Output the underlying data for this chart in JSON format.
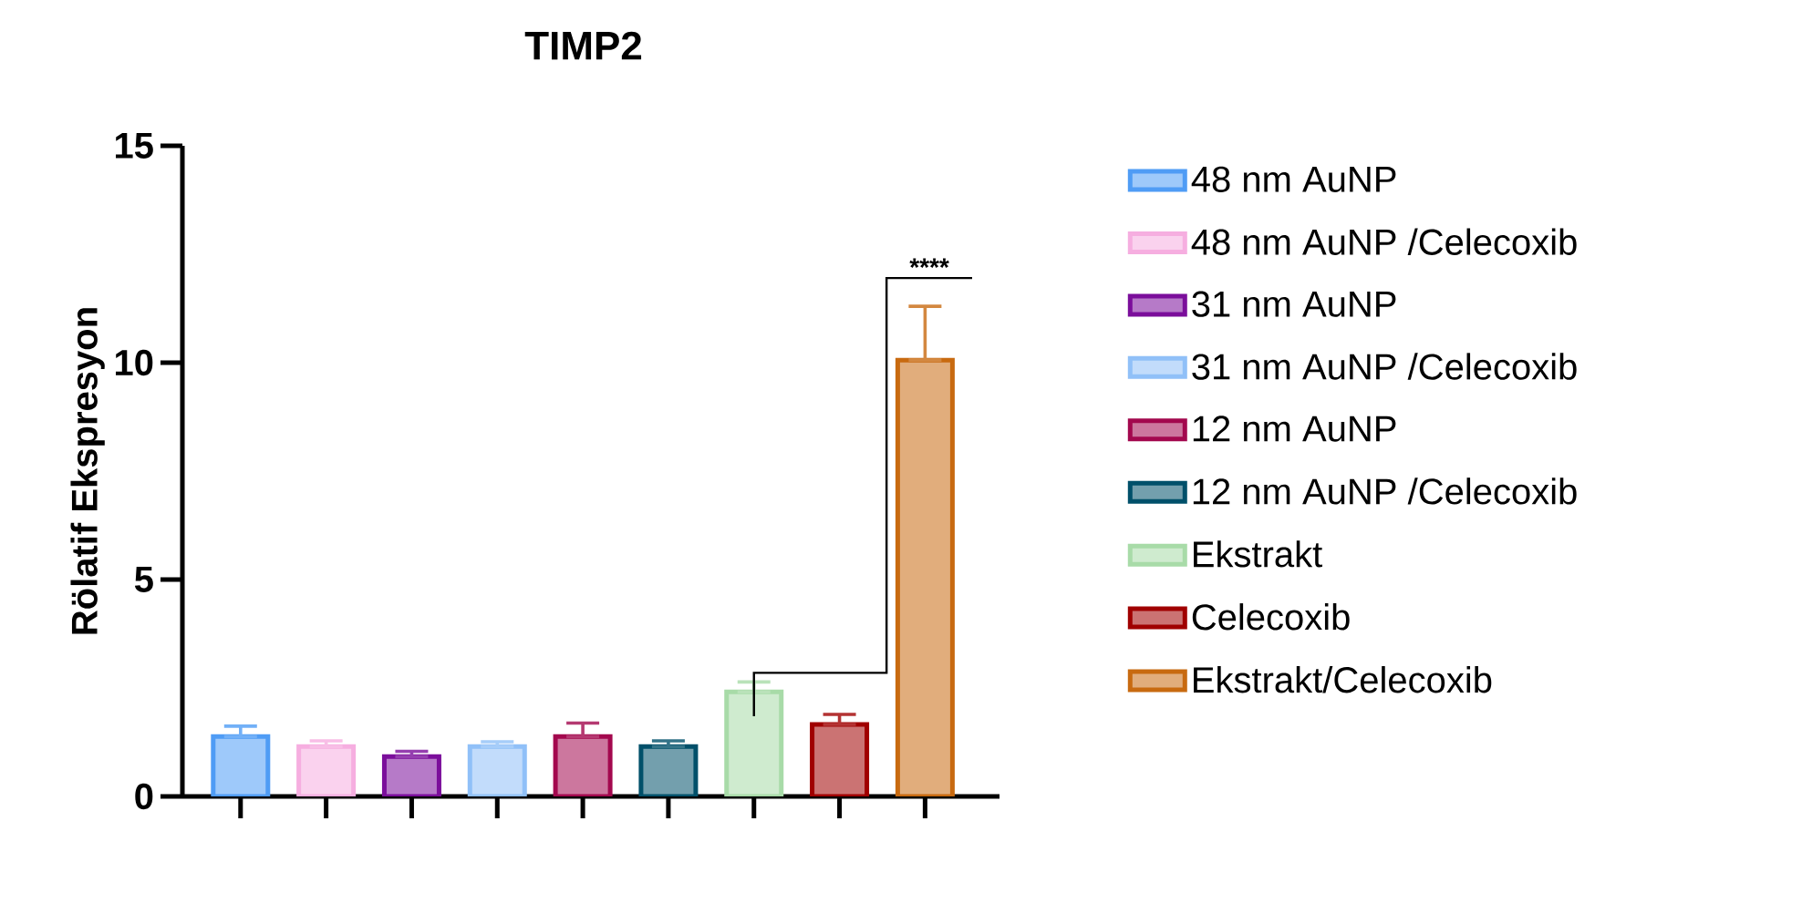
{
  "chart_data": {
    "type": "bar",
    "title": "TIMP2",
    "ylabel": "Rölatif Ekspresyon",
    "categories": [
      null,
      null,
      null,
      null,
      null,
      null,
      null,
      null,
      null
    ],
    "series": [
      {
        "name": "48 nm AuNP",
        "color": "#4f9cf5",
        "values": [
          1.38,
          null,
          null,
          null,
          null,
          null,
          null,
          null,
          null
        ],
        "errors": [
          [
            1.38,
            1.62
          ],
          null,
          null,
          null,
          null,
          null,
          null,
          null,
          null
        ]
      },
      {
        "name": "48 nm AuNP /Celecoxib",
        "color": "#f6aee0",
        "values": [
          null,
          1.15,
          null,
          null,
          null,
          null,
          null,
          null,
          null
        ],
        "errors": [
          null,
          [
            1.15,
            1.28
          ],
          null,
          null,
          null,
          null,
          null,
          null,
          null
        ]
      },
      {
        "name": "31 nm AuNP",
        "color": "#7b0e9b",
        "values": [
          null,
          null,
          0.92,
          null,
          null,
          null,
          null,
          null,
          null
        ],
        "errors": [
          null,
          null,
          [
            0.92,
            1.04
          ],
          null,
          null,
          null,
          null,
          null,
          null
        ]
      },
      {
        "name": "31 nm AuNP /Celecoxib",
        "color": "#90c0f8",
        "values": [
          null,
          null,
          null,
          1.15,
          null,
          null,
          null,
          null,
          null
        ],
        "errors": [
          null,
          null,
          null,
          [
            1.15,
            1.26
          ],
          null,
          null,
          null,
          null,
          null
        ]
      },
      {
        "name": "12 nm AuNP",
        "color": "#a3084e",
        "values": [
          null,
          null,
          null,
          null,
          1.38,
          null,
          null,
          null,
          null
        ],
        "errors": [
          null,
          null,
          null,
          null,
          [
            1.38,
            1.69
          ],
          null,
          null,
          null,
          null
        ]
      },
      {
        "name": "12 nm AuNP /Celecoxib",
        "color": "#00506a",
        "values": [
          null,
          null,
          null,
          null,
          null,
          1.15,
          null,
          null,
          null
        ],
        "errors": [
          null,
          null,
          null,
          null,
          null,
          [
            1.15,
            1.28
          ],
          null,
          null,
          null
        ]
      },
      {
        "name": "Ekstrakt",
        "color": "#a8dba8",
        "values": [
          null,
          null,
          null,
          null,
          null,
          null,
          2.41,
          null,
          null
        ],
        "errors": [
          null,
          null,
          null,
          null,
          null,
          null,
          [
            2.41,
            2.64
          ],
          null,
          null
        ]
      },
      {
        "name": "Celecoxib",
        "color": "#a00000",
        "values": [
          null,
          null,
          null,
          null,
          null,
          null,
          null,
          1.66,
          null
        ],
        "errors": [
          null,
          null,
          null,
          null,
          null,
          null,
          null,
          [
            1.66,
            1.89
          ],
          null
        ]
      },
      {
        "name": "Ekstrakt/Celecoxib",
        "color": "#c86a10",
        "values": [
          null,
          null,
          null,
          null,
          null,
          null,
          null,
          null,
          10.06
        ],
        "errors": [
          null,
          null,
          null,
          null,
          null,
          null,
          null,
          null,
          [
            10.06,
            11.3
          ]
        ]
      }
    ],
    "ylim": [
      0,
      15
    ],
    "yticks": [
      0,
      5,
      10,
      15
    ],
    "grid": false,
    "legend": "right",
    "annotations": [
      "****"
    ]
  }
}
